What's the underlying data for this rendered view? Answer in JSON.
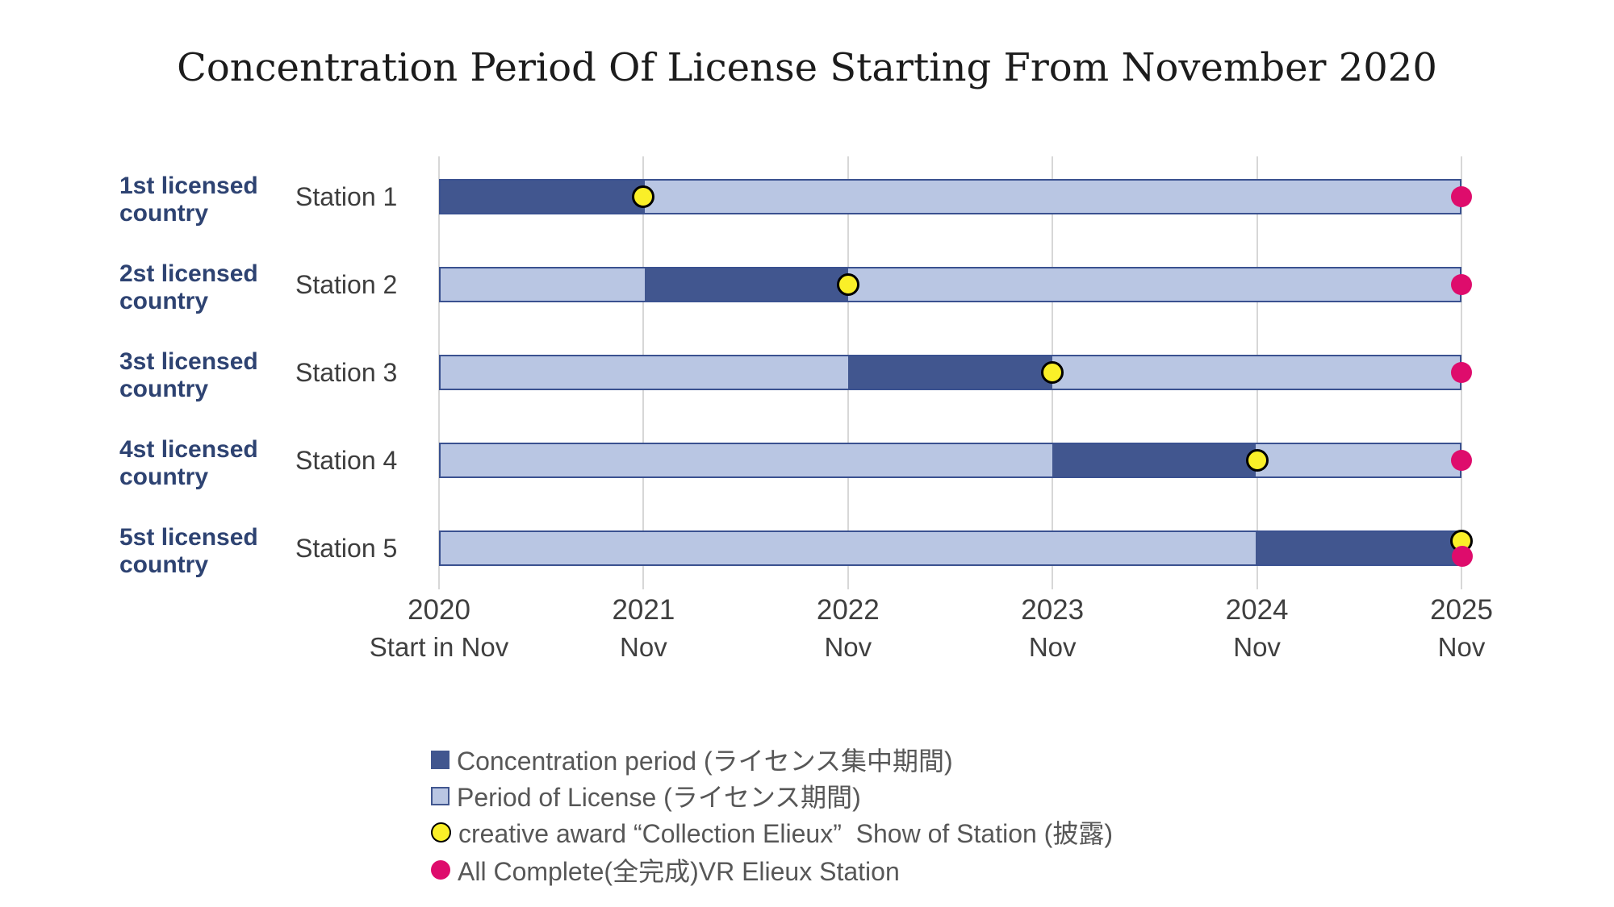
{
  "title": "Concentration Period Of License Starting From November 2020",
  "colors": {
    "concentration": "#41568F",
    "license": "#B9C6E3",
    "bar_border": "#3A5190",
    "award_fill": "#FAEF28",
    "award_border": "#000000",
    "complete_fill": "#DE0C6C",
    "gridline": "#D7D7D7",
    "group_label": "#2E4372",
    "text_dark": "#3F3F3F",
    "legend_text": "#575757"
  },
  "chart_data": {
    "type": "bar",
    "subtype": "horizontal-gantt",
    "title": "Concentration Period Of License Starting From November 2020",
    "x_range_years": [
      2020,
      2025
    ],
    "grid": true,
    "x_ticks": [
      {
        "year": "2020",
        "sub": "Start in Nov"
      },
      {
        "year": "2021",
        "sub": "Nov"
      },
      {
        "year": "2022",
        "sub": "Nov"
      },
      {
        "year": "2023",
        "sub": "Nov"
      },
      {
        "year": "2024",
        "sub": "Nov"
      },
      {
        "year": "2025",
        "sub": "Nov"
      }
    ],
    "rows": [
      {
        "group_line1": "1st licensed",
        "group_line2": "country",
        "station": "Station 1",
        "license_period": [
          2020,
          2025
        ],
        "concentration_period": [
          2020,
          2021
        ],
        "creative_award_year": 2021,
        "all_complete_year": 2025
      },
      {
        "group_line1": "2st licensed",
        "group_line2": "country",
        "station": "Station 2",
        "license_period": [
          2020,
          2025
        ],
        "concentration_period": [
          2021,
          2022
        ],
        "creative_award_year": 2022,
        "all_complete_year": 2025
      },
      {
        "group_line1": "3st licensed",
        "group_line2": "country",
        "station": "Station 3",
        "license_period": [
          2020,
          2025
        ],
        "concentration_period": [
          2022,
          2023
        ],
        "creative_award_year": 2023,
        "all_complete_year": 2025
      },
      {
        "group_line1": "4st licensed",
        "group_line2": "country",
        "station": "Station 4",
        "license_period": [
          2020,
          2025
        ],
        "concentration_period": [
          2023,
          2024
        ],
        "creative_award_year": 2024,
        "all_complete_year": 2025
      },
      {
        "group_line1": "5st licensed",
        "group_line2": "country",
        "station": "Station 5",
        "license_period": [
          2020,
          2025
        ],
        "concentration_period": [
          2024,
          2025
        ],
        "creative_award_year": 2025,
        "all_complete_year": 2025
      }
    ],
    "legend": [
      {
        "marker": "square-dark",
        "label": "Concentration period (ライセンス集中期間)"
      },
      {
        "marker": "square-light",
        "label": "Period of License (ライセンス期間)"
      },
      {
        "marker": "circle-yellow",
        "label": "creative award “Collection Elieux”  Show of Station (披露)"
      },
      {
        "marker": "circle-pink",
        "label": "All Complete(全完成)VR Elieux Station"
      }
    ],
    "legend_position": "bottom-left"
  }
}
